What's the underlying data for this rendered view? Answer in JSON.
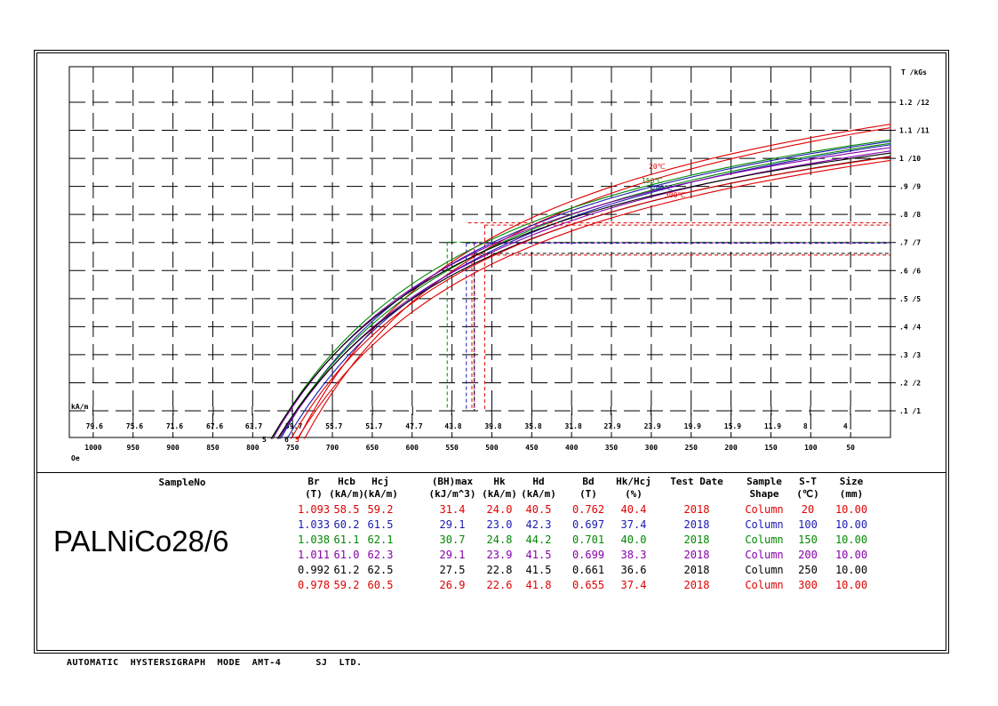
{
  "chart_data": {
    "type": "line",
    "right_axis_title": "T /kGs",
    "right_ticks": [
      {
        "v": 0.1,
        "label": ".1 /1"
      },
      {
        "v": 0.2,
        "label": ".2 /2"
      },
      {
        "v": 0.3,
        "label": ".3 /3"
      },
      {
        "v": 0.4,
        "label": ".4 /4"
      },
      {
        "v": 0.5,
        "label": ".5 /5"
      },
      {
        "v": 0.6,
        "label": ".6 /6"
      },
      {
        "v": 0.7,
        "label": ".7 /7"
      },
      {
        "v": 0.8,
        "label": ".8 /8"
      },
      {
        "v": 0.9,
        "label": ".9 /9"
      },
      {
        "v": 1.0,
        "label": "1 /10"
      },
      {
        "v": 1.1,
        "label": "1.1 /11"
      },
      {
        "v": 1.2,
        "label": "1.2 /12"
      }
    ],
    "ka_unit": "kA/m",
    "ka_ticks": [
      "79.6",
      "75.6",
      "71.6",
      "67.6",
      "63.7",
      "59.7",
      "55.7",
      "51.7",
      "47.7",
      "43.8",
      "39.8",
      "35.8",
      "31.8",
      "27.9",
      "23.9",
      "19.9",
      "15.9",
      "11.9",
      "8",
      "4"
    ],
    "oe_unit": "Oe",
    "oe_ticks": [
      "1000",
      "950",
      "900",
      "850",
      "800",
      "750",
      "700",
      "650",
      "600",
      "550",
      "500",
      "450",
      "400",
      "350",
      "300",
      "250",
      "200",
      "150",
      "100",
      "50"
    ],
    "xlim_oe": [
      1030,
      0
    ],
    "ylim_t": [
      0.0,
      1.25
    ],
    "grid": true,
    "curve_labels": [
      "20℃",
      "150℃",
      "200℃",
      "300℃"
    ],
    "series": [
      {
        "color": "#e00000",
        "label": "20℃",
        "Br": 1.093,
        "Hcb_oe": 735,
        "Hd_oe": 509,
        "Bd": 0.762,
        "Hk_oe": 302
      },
      {
        "color": "#1a1ab0",
        "label": "100℃",
        "Br": 1.033,
        "Hcb_oe": 757,
        "Hd_oe": 532,
        "Bd": 0.697,
        "Hk_oe": 289
      },
      {
        "color": "#008800",
        "label": "150℃",
        "Br": 1.038,
        "Hcb_oe": 768,
        "Hd_oe": 556,
        "Bd": 0.701,
        "Hk_oe": 312
      },
      {
        "color": "#8800aa",
        "label": "200℃",
        "Br": 1.011,
        "Hcb_oe": 767,
        "Hd_oe": 522,
        "Bd": 0.699,
        "Hk_oe": 300
      },
      {
        "color": "#000000",
        "label": "250℃",
        "Br": 0.992,
        "Hcb_oe": 769,
        "Hd_oe": 522,
        "Bd": 0.661,
        "Hk_oe": 287
      },
      {
        "color": "#e00000",
        "label": "300℃",
        "Br": 0.978,
        "Hcb_oe": 744,
        "Hd_oe": 525,
        "Bd": 0.655,
        "Hk_oe": 284
      }
    ],
    "bottom_marks": [
      "5",
      "6",
      "5"
    ]
  },
  "sample": {
    "label": "SampleNo",
    "name": "PALNiCo28/6"
  },
  "table": {
    "headers": [
      {
        "l1": "Br",
        "l2": "(T)"
      },
      {
        "l1": "Hcb",
        "l2": "(kA/m)"
      },
      {
        "l1": "Hcj",
        "l2": "(kA/m)"
      },
      {
        "l1": "(BH)max",
        "l2": "(kJ/m^3)"
      },
      {
        "l1": "Hk",
        "l2": "(kA/m)"
      },
      {
        "l1": "Hd",
        "l2": "(kA/m)"
      },
      {
        "l1": "Bd",
        "l2": "(T)"
      },
      {
        "l1": "Hk/Hcj",
        "l2": "(%)"
      },
      {
        "l1": "Test Date",
        "l2": ""
      },
      {
        "l1": "Sample",
        "l2": "Shape"
      },
      {
        "l1": "S-T",
        "l2": "(℃)"
      },
      {
        "l1": "Size",
        "l2": "(mm)"
      }
    ],
    "rows": [
      {
        "color": "#e00000",
        "cells": [
          "1.093",
          "58.5",
          "59.2",
          "31.4",
          "24.0",
          "40.5",
          "0.762",
          "40.4",
          "2018",
          "Column",
          "20",
          "10.00"
        ]
      },
      {
        "color": "#1a1ab0",
        "cells": [
          "1.033",
          "60.2",
          "61.5",
          "29.1",
          "23.0",
          "42.3",
          "0.697",
          "37.4",
          "2018",
          "Column",
          "100",
          "10.00"
        ]
      },
      {
        "color": "#008800",
        "cells": [
          "1.038",
          "61.1",
          "62.1",
          "30.7",
          "24.8",
          "44.2",
          "0.701",
          "40.0",
          "2018",
          "Column",
          "150",
          "10.00"
        ]
      },
      {
        "color": "#8800aa",
        "cells": [
          "1.011",
          "61.0",
          "62.3",
          "29.1",
          "23.9",
          "41.5",
          "0.699",
          "38.3",
          "2018",
          "Column",
          "200",
          "10.00"
        ]
      },
      {
        "color": "#000000",
        "cells": [
          "0.992",
          "61.2",
          "62.5",
          "27.5",
          "22.8",
          "41.5",
          "0.661",
          "36.6",
          "2018",
          "Column",
          "250",
          "10.00"
        ]
      },
      {
        "color": "#e00000",
        "cells": [
          "0.978",
          "59.2",
          "60.5",
          "26.9",
          "22.6",
          "41.8",
          "0.655",
          "37.4",
          "2018",
          "Column",
          "300",
          "10.00"
        ]
      }
    ]
  },
  "footer": {
    "text": "AUTOMATIC  HYSTERSIGRAPH  MODE  AMT-4      SJ  LTD."
  }
}
